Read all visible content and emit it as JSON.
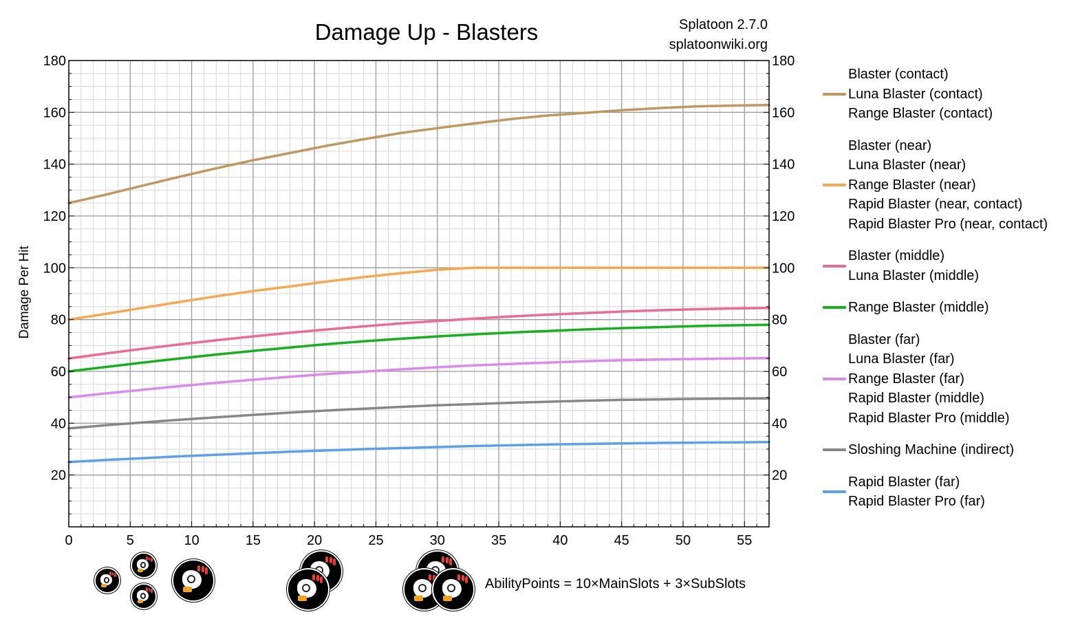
{
  "title": "Damage Up - Blasters",
  "version_lines": [
    "Splatoon 2.7.0",
    "splatoonwiki.org"
  ],
  "formula": "AbilityPoints = 10×MainSlots + 3×SubSlots",
  "icons": [
    "damage-up-ability-icon"
  ],
  "chart_data": {
    "type": "line",
    "title": "Damage Up - Blasters",
    "xlabel": "",
    "ylabel": "Damage Per Hit",
    "xlim": [
      0,
      57
    ],
    "ylim": [
      0,
      180
    ],
    "x_ticks": [
      0,
      5,
      10,
      15,
      20,
      25,
      30,
      35,
      40,
      45,
      50,
      55
    ],
    "y_ticks": [
      20,
      40,
      60,
      80,
      100,
      120,
      140,
      160,
      180
    ],
    "grid": true,
    "legend_position": "right",
    "x": [
      0,
      3,
      6,
      9,
      12,
      15,
      18,
      21,
      24,
      27,
      30,
      33,
      36,
      39,
      42,
      45,
      48,
      51,
      54,
      57
    ],
    "series": [
      {
        "names": [
          "Blaster (contact)",
          "Luna Blaster (contact)",
          "Range Blaster (contact)"
        ],
        "color": "#c0975c",
        "values": [
          125,
          128.2,
          131.7,
          135.1,
          138.4,
          141.5,
          144.3,
          147.1,
          149.6,
          152,
          153.9,
          155.7,
          157.4,
          158.8,
          159.8,
          160.8,
          161.6,
          162.3,
          162.6,
          162.8
        ]
      },
      {
        "names": [
          "Blaster (near)",
          "Luna Blaster (near)",
          "Range Blaster (near)",
          "Rapid Blaster (near, contact)",
          "Rapid Blaster Pro (near, contact)"
        ],
        "color": "#f7a84d",
        "values": [
          80,
          82.2,
          84.5,
          86.8,
          89,
          91,
          92.8,
          94.7,
          96.4,
          97.9,
          99.2,
          100,
          100,
          100,
          100,
          100,
          100,
          100,
          100,
          100
        ]
      },
      {
        "names": [
          "Blaster (middle)",
          "Luna Blaster (middle)"
        ],
        "color": "#ee6a95",
        "values": [
          65,
          66.9,
          68.7,
          70.4,
          72,
          73.5,
          74.9,
          76.2,
          77.4,
          78.5,
          79.5,
          80.4,
          81.2,
          81.9,
          82.5,
          83.1,
          83.6,
          84,
          84.3,
          84.5
        ]
      },
      {
        "names": [
          "Range Blaster (middle)"
        ],
        "color": "#11b21a",
        "values": [
          60,
          61.7,
          63.4,
          65,
          66.5,
          67.9,
          69.2,
          70.5,
          71.6,
          72.6,
          73.5,
          74.3,
          75,
          75.6,
          76.2,
          76.7,
          77.1,
          77.5,
          77.8,
          78
        ]
      },
      {
        "names": [
          "Blaster (far)",
          "Luna Blaster (far)",
          "Range Blaster (far)",
          "Rapid Blaster (middle)",
          "Rapid Blaster Pro (middle)"
        ],
        "color": "#dd88ee",
        "values": [
          50,
          51.5,
          52.9,
          54.3,
          55.6,
          56.8,
          57.9,
          59,
          59.9,
          60.8,
          61.6,
          62.3,
          62.9,
          63.4,
          63.9,
          64.3,
          64.6,
          64.8,
          65,
          65.1
        ]
      },
      {
        "names": [
          "Sloshing Machine (indirect)"
        ],
        "color": "#878787",
        "values": [
          38,
          39.2,
          40.3,
          41.3,
          42.3,
          43.2,
          44.1,
          44.9,
          45.6,
          46.3,
          46.9,
          47.4,
          47.9,
          48.3,
          48.7,
          49,
          49.2,
          49.4,
          49.5,
          49.6
        ]
      },
      {
        "names": [
          "Rapid Blaster (far)",
          "Rapid Blaster Pro (far)"
        ],
        "color": "#5aa0f0",
        "values": [
          25,
          25.8,
          26.5,
          27.2,
          27.8,
          28.4,
          29,
          29.5,
          30,
          30.4,
          30.8,
          31.2,
          31.5,
          31.8,
          32,
          32.2,
          32.4,
          32.5,
          32.6,
          32.7
        ]
      }
    ]
  }
}
